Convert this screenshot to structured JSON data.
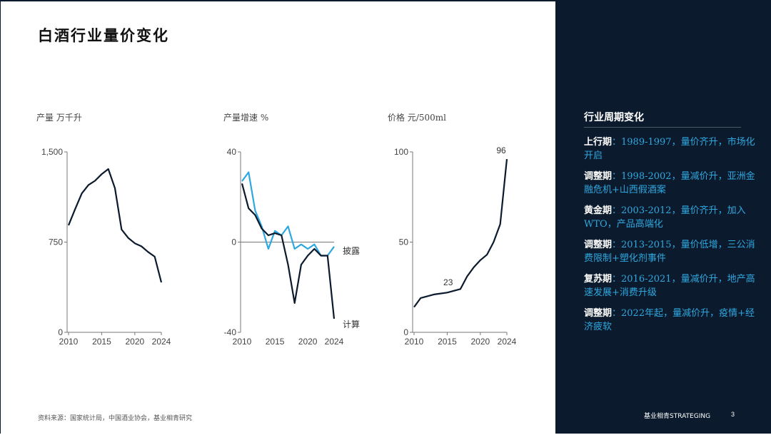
{
  "title": "白酒行业量价变化",
  "source": "资料来源：国家统计局，中国酒业协会，基业相青研究",
  "chart_data": [
    {
      "type": "line",
      "title": "产量 万千升",
      "ylim": [
        0,
        1500
      ],
      "yticks": [
        "1,500",
        "750",
        "0"
      ],
      "yticks_values": [
        1500,
        750,
        0
      ],
      "xlim": [
        2010,
        2024
      ],
      "xticks": [
        2010,
        2015,
        2020,
        2024
      ],
      "series": [
        {
          "x": [
            2010,
            2011,
            2012,
            2013,
            2014,
            2015,
            2016,
            2017,
            2018,
            2019,
            2020,
            2021,
            2022,
            2023,
            2024
          ],
          "values": [
            890,
            1025,
            1155,
            1225,
            1260,
            1315,
            1358,
            1198,
            855,
            785,
            740,
            715,
            668,
            629,
            415
          ]
        }
      ]
    },
    {
      "type": "line",
      "title": "产量增速 %",
      "ylim": [
        -40,
        40
      ],
      "yticks": [
        "40",
        "0",
        "-40"
      ],
      "yticks_values": [
        40,
        0,
        -40
      ],
      "xlim": [
        2010,
        2024
      ],
      "xticks": [
        2010,
        2015,
        2020,
        2024
      ],
      "series": [
        {
          "name": "披露",
          "color": "#2fa8e0",
          "x": [
            2010,
            2011,
            2012,
            2013,
            2014,
            2015,
            2016,
            2017,
            2018,
            2019,
            2020,
            2021,
            2022,
            2023,
            2024
          ],
          "values": [
            27,
            31,
            14,
            7,
            -3,
            5,
            3,
            7,
            -3,
            -1,
            -3,
            -1,
            -6,
            -6,
            -2
          ]
        },
        {
          "name": "计算",
          "color": "#0b1a2c",
          "x": [
            2010,
            2011,
            2012,
            2013,
            2014,
            2015,
            2016,
            2017,
            2018,
            2019,
            2020,
            2021,
            2022,
            2023,
            2024
          ],
          "values": [
            26,
            15,
            12,
            6,
            3,
            4,
            3,
            -10,
            -27,
            -10,
            -6,
            -3,
            -6,
            -6,
            -34
          ]
        }
      ]
    },
    {
      "type": "line",
      "title": "价格 元/500ml",
      "ylim": [
        0,
        100
      ],
      "yticks": [
        "100",
        "50",
        "0"
      ],
      "yticks_values": [
        100,
        50,
        0
      ],
      "xlim": [
        2010,
        2024
      ],
      "xticks": [
        2010,
        2015,
        2020,
        2024
      ],
      "annotations": [
        {
          "label": "23",
          "x": 2016,
          "y": 23
        },
        {
          "label": "96",
          "x": 2024,
          "y": 96
        }
      ],
      "series": [
        {
          "x": [
            2010,
            2011,
            2012,
            2013,
            2014,
            2015,
            2016,
            2017,
            2018,
            2019,
            2020,
            2021,
            2022,
            2023,
            2024
          ],
          "values": [
            14,
            19,
            20,
            21,
            21.5,
            22,
            23,
            24,
            31,
            36,
            40,
            43,
            50,
            60,
            96
          ]
        }
      ]
    }
  ],
  "panel": {
    "title": "行业周期变化",
    "phases": [
      {
        "name": "上行期",
        "desc": "：1989-1997，量价齐升，市场化开启"
      },
      {
        "name": "调整期",
        "desc": "：1998-2002，量减价升，亚洲金融危机+山西假酒案"
      },
      {
        "name": "黄金期",
        "desc": "：2003-2012，量价齐升，加入WTO，产品高端化"
      },
      {
        "name": "调整期",
        "desc": "：2013-2015，量价低增，三公消费限制+塑化剂事件"
      },
      {
        "name": "复苏期",
        "desc": "：2016-2021，量减价升，地产高速发展+消费升级"
      },
      {
        "name": "调整期",
        "desc": "：2022年起，量减价升，疫情+经济疲软"
      }
    ],
    "brand": "基业相青STRATEGING",
    "page": "3"
  },
  "colors": {
    "navy": "#0b1a2c",
    "accent": "#2fa8e0"
  }
}
